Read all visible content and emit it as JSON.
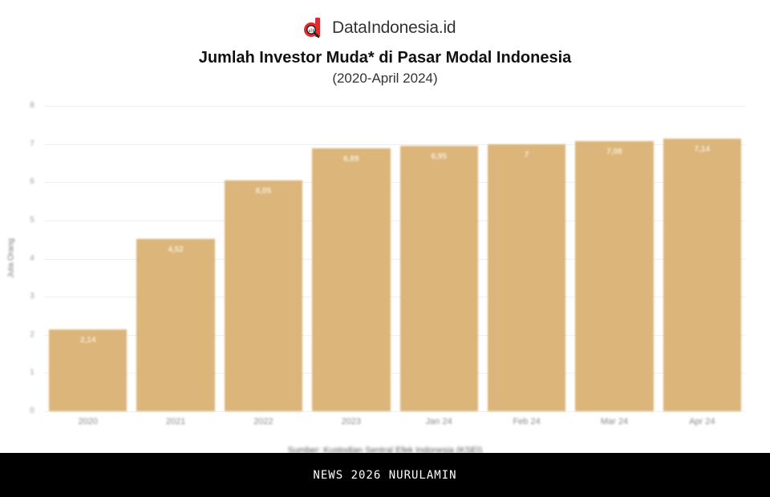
{
  "brand": {
    "name": "DataIndonesia.id",
    "logo_icon": "data-magnifier-logo-icon",
    "logo_color": "#e8282b"
  },
  "chart_data": {
    "type": "bar",
    "title": "Jumlah Investor Muda* di Pasar Modal Indonesia",
    "subtitle": "(2020-April 2024)",
    "xlabel": "",
    "ylabel": "Juta Orang",
    "ylim": [
      0,
      8
    ],
    "yticks": [
      "0",
      "1",
      "2",
      "3",
      "4",
      "5",
      "6",
      "7",
      "8"
    ],
    "grid": true,
    "legend": "none",
    "bar_color": "#dbb57a",
    "categories": [
      "2020",
      "2021",
      "2022",
      "2023",
      "Jan 24",
      "Feb 24",
      "Mar 24",
      "Apr 24"
    ],
    "values": [
      2.14,
      4.52,
      6.05,
      6.89,
      6.95,
      7.0,
      7.08,
      7.14
    ],
    "value_labels": [
      "2,14",
      "4,52",
      "6,05",
      "6,89",
      "6,95",
      "7",
      "7,08",
      "7,14"
    ],
    "source": "Sumber: Kustodian Sentral Efek Indonesia (KSEI)"
  },
  "footer": {
    "text": "NEWS 2026 NURULAMIN"
  }
}
